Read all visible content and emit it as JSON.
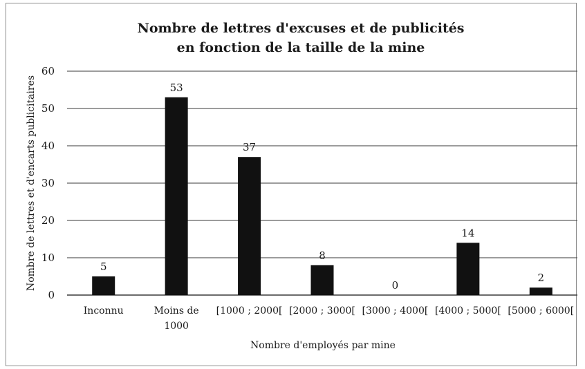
{
  "chart_data": {
    "type": "bar",
    "title_lines": [
      "Nombre de lettres d'excuses et de publicités",
      "en fonction de la taille de la mine"
    ],
    "xlabel": "Nombre d'employés par mine",
    "ylabel": "Nombre de lettres et d'encarts publicitaires",
    "categories": [
      [
        "Inconnu"
      ],
      [
        "Moins de",
        "1000"
      ],
      [
        "[1000 ; 2000["
      ],
      [
        "[2000 ; 3000["
      ],
      [
        "[3000 ; 4000["
      ],
      [
        "[4000 ; 5000["
      ],
      [
        "[5000 ; 6000["
      ]
    ],
    "values": [
      5,
      53,
      37,
      8,
      0,
      14,
      2
    ],
    "ylim": [
      0,
      60
    ],
    "yticks": [
      0,
      10,
      20,
      30,
      40,
      50,
      60
    ],
    "grid": true,
    "legend": "none",
    "bar_color": "#111111",
    "grid_color": "#3a3a3a"
  }
}
